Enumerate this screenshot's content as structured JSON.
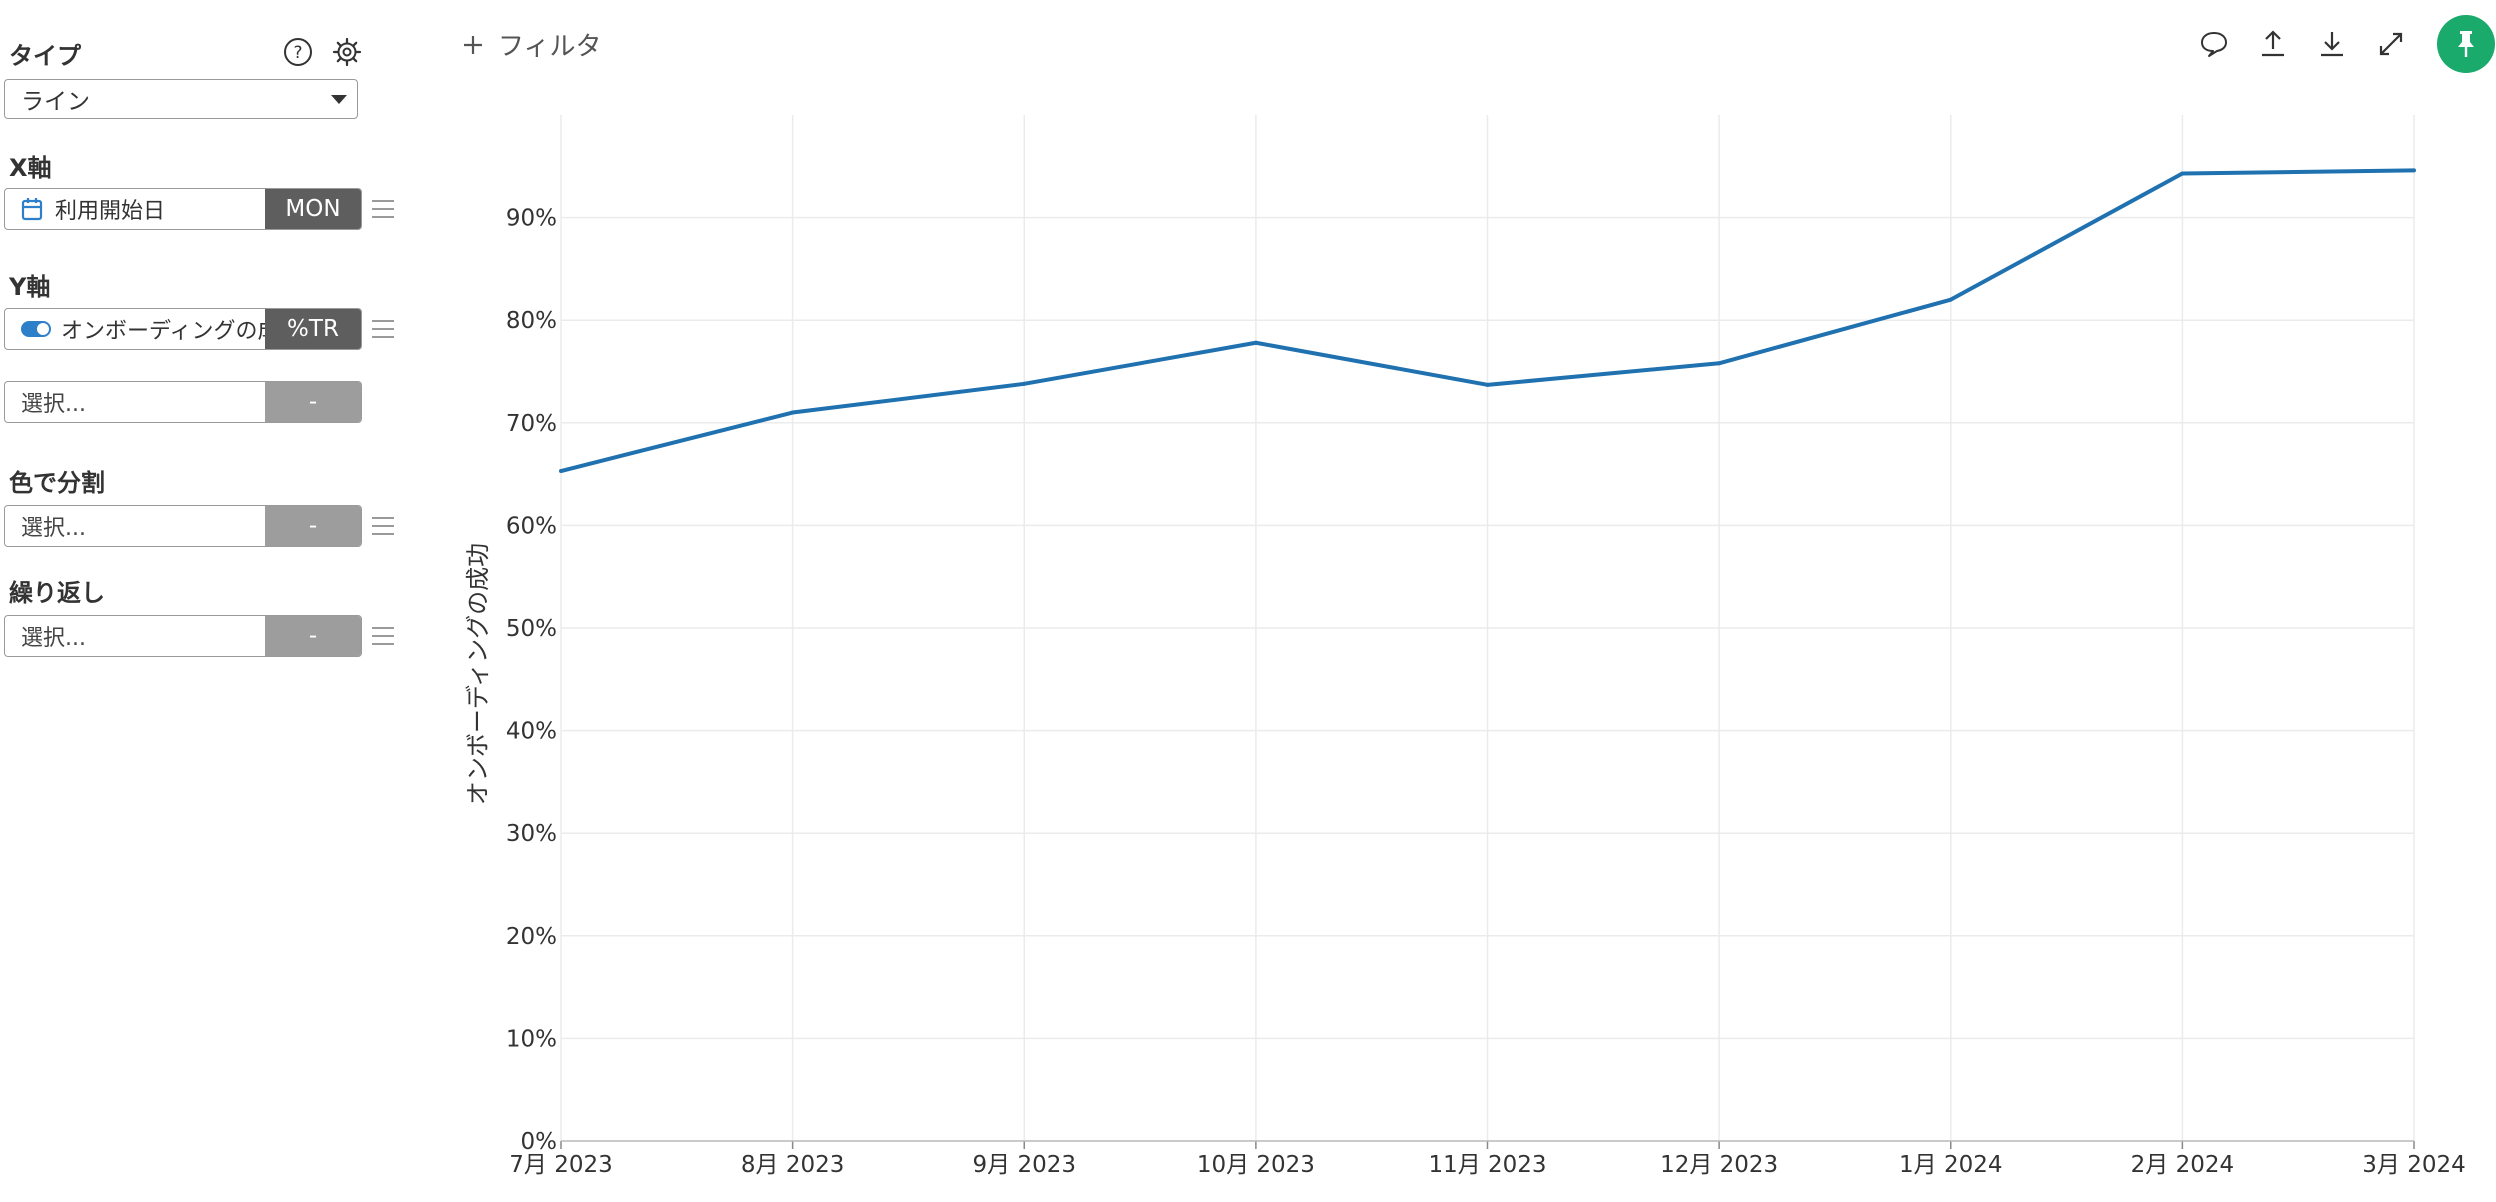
{
  "panel": {
    "type_label": "タイプ",
    "type_value": "ライン",
    "x_axis_label": "X軸",
    "x_field": "利用開始日",
    "x_tag": "MON",
    "y_axis_label": "Y軸",
    "y_field": "オンボーディングの成功",
    "y_tag": "%TR",
    "y2_field": "選択...",
    "y2_tag": "-",
    "color_label": "色で分割",
    "color_field": "選択...",
    "color_tag": "-",
    "repeat_label": "繰り返し",
    "repeat_field": "選択...",
    "repeat_tag": "-",
    "icons": {
      "help": "help-icon",
      "settings": "gear-icon",
      "calendar": "calendar-icon",
      "toggle": "toggle-icon",
      "drag": "drag-handle-icon"
    }
  },
  "toolbar": {
    "filter_label": "フィルタ",
    "icons": [
      "comment-icon",
      "upload-icon",
      "download-icon",
      "expand-icon",
      "pin-icon"
    ]
  },
  "colors": {
    "line": "#2071b0",
    "pin": "#1aaa6b",
    "grid": "#ebebeb",
    "tag_dark": "#5e5e5e",
    "tag_empty": "#9d9d9d"
  },
  "chart_data": {
    "type": "line",
    "categories": [
      "7月 2023",
      "8月 2023",
      "9月 2023",
      "10月 2023",
      "11月 2023",
      "12月 2023",
      "1月 2024",
      "2月 2024",
      "3月 2024"
    ],
    "series": [
      {
        "values": [
          65.3,
          71.0,
          73.8,
          77.8,
          73.7,
          75.8,
          82.0,
          94.3,
          94.6
        ]
      }
    ],
    "ylabel": "オンボーディングの成功",
    "xlabel": "",
    "ylim": [
      0,
      100
    ],
    "yticks": [
      "0%",
      "10%",
      "20%",
      "30%",
      "40%",
      "50%",
      "60%",
      "70%",
      "80%",
      "90%"
    ],
    "grid": true,
    "legend": "none"
  }
}
